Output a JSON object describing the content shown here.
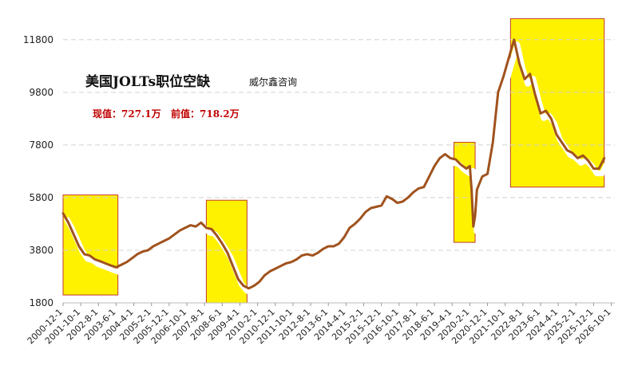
{
  "chart_data": {
    "type": "line",
    "title": "美国JOLTs职位空缺",
    "source": "威尔鑫咨询",
    "current_label": "现值：727.1万",
    "previous_label": "前值：718.2万",
    "ylim": [
      1800,
      12400
    ],
    "yticks": [
      1800,
      3800,
      5800,
      7800,
      9800,
      11800
    ],
    "xlim": [
      "2000-12",
      "2026-12"
    ],
    "xticks": [
      "2000-12-1",
      "2001-10-1",
      "2002-8-1",
      "2003-6-1",
      "2004-4-1",
      "2005-2-1",
      "2005-12-1",
      "2006-10-1",
      "2007-8-1",
      "2008-6-1",
      "2009-4-1",
      "2010-2-1",
      "2010-12-1",
      "2011-10-1",
      "2012-8-1",
      "2013-6-1",
      "2014-4-1",
      "2015-2-1",
      "2015-12-1",
      "2016-10-1",
      "2017-8-1",
      "2018-6-1",
      "2019-4-1",
      "2020-2-1",
      "2020-12-1",
      "2021-10-1",
      "2022-8-1",
      "2023-6-1",
      "2024-4-1",
      "2025-2-1",
      "2025-12-1",
      "2026-10-1"
    ],
    "highlight_ranges": [
      {
        "start": "2000-12",
        "end": "2003-7",
        "ymin": 2100,
        "ymax": 5900
      },
      {
        "start": "2007-9",
        "end": "2009-8",
        "ymin": 1800,
        "ymax": 5700
      },
      {
        "start": "2019-5",
        "end": "2020-5",
        "ymin": 4100,
        "ymax": 7900
      },
      {
        "start": "2022-1",
        "end": "2026-6",
        "ymin": 6200,
        "ymax": 12600
      }
    ],
    "series": [
      {
        "points": [
          [
            "2000-12",
            5200
          ],
          [
            "2001-3",
            4850
          ],
          [
            "2001-6",
            4400
          ],
          [
            "2001-9",
            3950
          ],
          [
            "2001-12",
            3650
          ],
          [
            "2002-3",
            3600
          ],
          [
            "2002-6",
            3450
          ],
          [
            "2002-9",
            3380
          ],
          [
            "2002-12",
            3300
          ],
          [
            "2003-3",
            3220
          ],
          [
            "2003-6",
            3150
          ],
          [
            "2003-9",
            3250
          ],
          [
            "2003-12",
            3350
          ],
          [
            "2004-3",
            3500
          ],
          [
            "2004-6",
            3650
          ],
          [
            "2004-9",
            3750
          ],
          [
            "2004-12",
            3800
          ],
          [
            "2005-3",
            3950
          ],
          [
            "2005-6",
            4050
          ],
          [
            "2005-9",
            4150
          ],
          [
            "2005-12",
            4250
          ],
          [
            "2006-3",
            4400
          ],
          [
            "2006-6",
            4550
          ],
          [
            "2006-9",
            4650
          ],
          [
            "2006-12",
            4750
          ],
          [
            "2007-3",
            4700
          ],
          [
            "2007-6",
            4850
          ],
          [
            "2007-9",
            4650
          ],
          [
            "2007-12",
            4600
          ],
          [
            "2008-3",
            4350
          ],
          [
            "2008-6",
            4050
          ],
          [
            "2008-9",
            3700
          ],
          [
            "2008-12",
            3200
          ],
          [
            "2009-3",
            2700
          ],
          [
            "2009-6",
            2450
          ],
          [
            "2009-9",
            2350
          ],
          [
            "2009-12",
            2450
          ],
          [
            "2010-3",
            2600
          ],
          [
            "2010-6",
            2850
          ],
          [
            "2010-9",
            3000
          ],
          [
            "2010-12",
            3100
          ],
          [
            "2011-3",
            3200
          ],
          [
            "2011-6",
            3300
          ],
          [
            "2011-9",
            3350
          ],
          [
            "2011-12",
            3450
          ],
          [
            "2012-3",
            3600
          ],
          [
            "2012-6",
            3650
          ],
          [
            "2012-9",
            3600
          ],
          [
            "2012-12",
            3700
          ],
          [
            "2013-3",
            3850
          ],
          [
            "2013-6",
            3950
          ],
          [
            "2013-9",
            3950
          ],
          [
            "2013-12",
            4050
          ],
          [
            "2014-3",
            4300
          ],
          [
            "2014-6",
            4650
          ],
          [
            "2014-9",
            4800
          ],
          [
            "2014-12",
            5000
          ],
          [
            "2015-3",
            5250
          ],
          [
            "2015-6",
            5400
          ],
          [
            "2015-9",
            5450
          ],
          [
            "2015-12",
            5500
          ],
          [
            "2016-3",
            5850
          ],
          [
            "2016-6",
            5750
          ],
          [
            "2016-9",
            5600
          ],
          [
            "2016-12",
            5650
          ],
          [
            "2017-3",
            5800
          ],
          [
            "2017-6",
            6000
          ],
          [
            "2017-9",
            6150
          ],
          [
            "2017-12",
            6200
          ],
          [
            "2018-3",
            6600
          ],
          [
            "2018-6",
            7000
          ],
          [
            "2018-9",
            7300
          ],
          [
            "2018-12",
            7450
          ],
          [
            "2019-3",
            7300
          ],
          [
            "2019-6",
            7250
          ],
          [
            "2019-9",
            7050
          ],
          [
            "2019-12",
            6900
          ],
          [
            "2020-2",
            7000
          ],
          [
            "2020-3",
            6100
          ],
          [
            "2020-4",
            4700
          ],
          [
            "2020-5",
            5100
          ],
          [
            "2020-6",
            6100
          ],
          [
            "2020-9",
            6600
          ],
          [
            "2020-12",
            6700
          ],
          [
            "2021-3",
            7900
          ],
          [
            "2021-6",
            9800
          ],
          [
            "2021-9",
            10400
          ],
          [
            "2021-12",
            11100
          ],
          [
            "2022-3",
            11800
          ],
          [
            "2022-6",
            10900
          ],
          [
            "2022-9",
            10300
          ],
          [
            "2022-12",
            10500
          ],
          [
            "2023-3",
            9700
          ],
          [
            "2023-6",
            9000
          ],
          [
            "2023-9",
            9100
          ],
          [
            "2023-12",
            8800
          ],
          [
            "2024-3",
            8200
          ],
          [
            "2024-6",
            7900
          ],
          [
            "2024-9",
            7600
          ],
          [
            "2024-12",
            7500
          ],
          [
            "2025-3",
            7300
          ],
          [
            "2025-6",
            7400
          ],
          [
            "2025-9",
            7200
          ],
          [
            "2025-12",
            6900
          ],
          [
            "2026-3",
            6900
          ],
          [
            "2026-6",
            7300
          ]
        ]
      }
    ]
  }
}
